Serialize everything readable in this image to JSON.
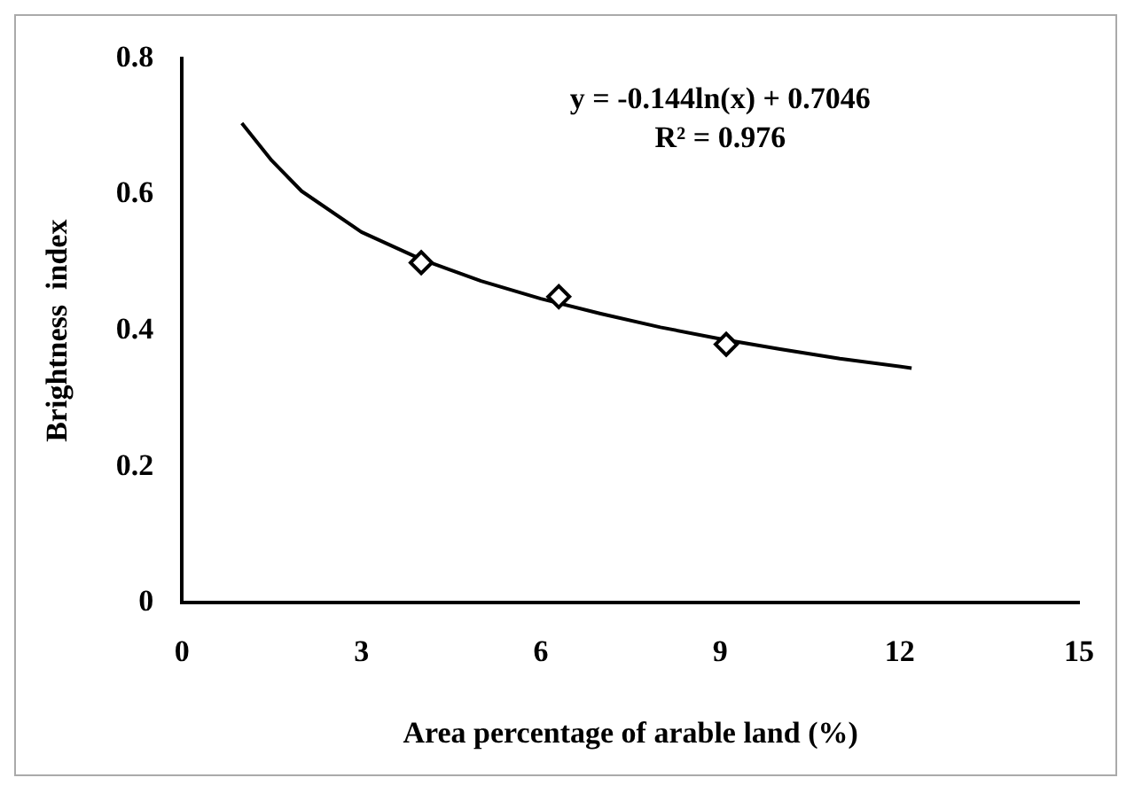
{
  "chart_data": {
    "type": "scatter",
    "xlabel": "Area percentage of arable land (%)",
    "ylabel": "Brightness  index",
    "annotations": [
      "y = -0.144ln(x) + 0.7046",
      "R² = 0.976"
    ],
    "series": [
      {
        "type": "scatter",
        "color": "#000000",
        "marker": "diamond",
        "x": [
          4.0,
          6.3,
          9.1
        ],
        "values": [
          0.5,
          0.45,
          0.38
        ]
      },
      {
        "type": "line",
        "color": "#000000",
        "marker": "none",
        "line_style": "solid",
        "x": [
          1,
          1.5,
          2,
          3,
          4,
          5,
          6,
          7,
          8,
          9,
          10,
          11,
          12.2
        ],
        "values": [
          0.705,
          0.65,
          0.605,
          0.545,
          0.505,
          0.473,
          0.447,
          0.425,
          0.405,
          0.388,
          0.373,
          0.359,
          0.345
        ]
      }
    ],
    "xlim": [
      0,
      15
    ],
    "xticks": [
      0,
      3,
      6,
      9,
      12,
      15
    ],
    "ylim": [
      0,
      0.8
    ],
    "yticks": [
      0,
      0.2,
      0.4,
      0.6,
      0.8
    ],
    "grid": false,
    "legend": false
  }
}
